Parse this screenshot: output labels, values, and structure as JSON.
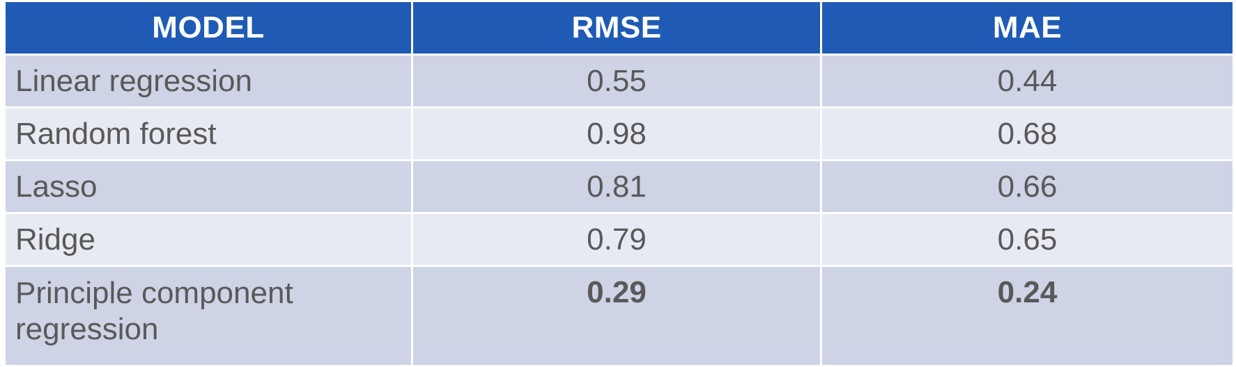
{
  "table": {
    "headers": [
      "MODEL",
      "RMSE",
      "MAE"
    ],
    "rows": [
      {
        "model": "Linear regression",
        "rmse": "0.55",
        "mae": "0.44"
      },
      {
        "model": "Random forest",
        "rmse": "0.98",
        "mae": "0.68"
      },
      {
        "model": "Lasso",
        "rmse": "0.81",
        "mae": "0.66"
      },
      {
        "model": "Ridge",
        "rmse": "0.79",
        "mae": "0.65"
      },
      {
        "model_line1": "Principle component",
        "model_line2": "regression",
        "rmse": "0.29",
        "mae": "0.24",
        "highlight": true
      }
    ],
    "colors": {
      "header_bg": "#1f5bb4",
      "header_text": "#ffffff",
      "row_dark": "#ced3e6",
      "row_light": "#e8eaf3",
      "body_text": "#595959"
    }
  }
}
